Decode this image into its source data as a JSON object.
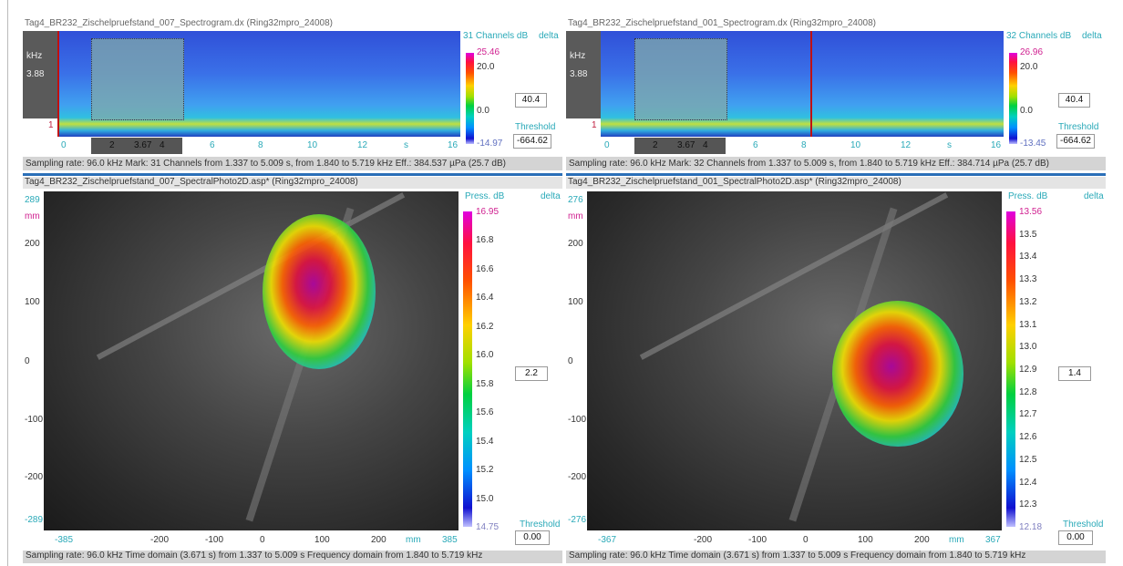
{
  "panels": [
    {
      "spectrogram": {
        "title": "Tag4_BR232_Zischelpruefstand_007_Spectrogram.dx (Ring32mpro_24008)",
        "y_labels": [
          "kHz",
          "3.88",
          "1"
        ],
        "x_labels": [
          "0",
          "2",
          "3.67",
          "4",
          "6",
          "8",
          "10",
          "12",
          "s",
          "16"
        ],
        "scale": {
          "header": "31 Channels dB",
          "delta": "delta",
          "labels": [
            "25.46",
            "20.0",
            "0.0",
            "-14.97"
          ],
          "value": "40.4",
          "threshold_label": "Threshold",
          "threshold": "-664.62"
        }
      },
      "status": "Sampling rate: 96.0 kHz Mark: 31 Channels from 1.337 to 5.009 s, from 1.840 to 5.719 kHz  Eff.: 384.537 µPa (25.7 dB)",
      "photo": {
        "title": "Tag4_BR232_Zischelpruefstand_007_SpectralPhoto2D.asp* (Ring32mpro_24008)",
        "y_labels": [
          "289",
          "mm",
          "200",
          "100",
          "0",
          "-100",
          "-200",
          "-289"
        ],
        "x_labels": [
          "-385",
          "-200",
          "-100",
          "0",
          "100",
          "200",
          "mm",
          "385"
        ],
        "scale": {
          "header": "Press. dB",
          "delta": "delta",
          "labels": [
            "16.95",
            "16.8",
            "16.6",
            "16.4",
            "16.2",
            "16.0",
            "15.8",
            "15.6",
            "15.4",
            "15.2",
            "15.0",
            "14.75"
          ],
          "value": "2.2",
          "threshold_label": "Threshold",
          "threshold": "0.00"
        }
      },
      "footer": "Sampling rate: 96.0 kHz  Time domain (3.671 s) from 1.337 to 5.009 s     Frequency domain from 1.840 to 5.719 kHz"
    },
    {
      "spectrogram": {
        "title": "Tag4_BR232_Zischelpruefstand_001_Spectrogram.dx (Ring32mpro_24008)",
        "y_labels": [
          "kHz",
          "3.88",
          "1"
        ],
        "x_labels": [
          "0",
          "2",
          "3.67",
          "4",
          "6",
          "8",
          "10",
          "12",
          "s",
          "16"
        ],
        "scale": {
          "header": "32 Channels dB",
          "delta": "delta",
          "labels": [
            "26.96",
            "20.0",
            "0.0",
            "-13.45"
          ],
          "value": "40.4",
          "threshold_label": "Threshold",
          "threshold": "-664.62"
        }
      },
      "status": "Sampling rate: 96.0 kHz Mark: 32 Channels from 1.337 to 5.009 s, from 1.840 to 5.719 kHz  Eff.: 384.714 µPa (25.7 dB)",
      "photo": {
        "title": "Tag4_BR232_Zischelpruefstand_001_SpectralPhoto2D.asp* (Ring32mpro_24008)",
        "y_labels": [
          "276",
          "mm",
          "200",
          "100",
          "0",
          "-100",
          "-200",
          "-276"
        ],
        "x_labels": [
          "-367",
          "-200",
          "-100",
          "0",
          "100",
          "200",
          "mm",
          "367"
        ],
        "scale": {
          "header": "Press. dB",
          "delta": "delta",
          "labels": [
            "13.56",
            "13.5",
            "13.4",
            "13.3",
            "13.2",
            "13.1",
            "13.0",
            "12.9",
            "12.8",
            "12.7",
            "12.6",
            "12.5",
            "12.4",
            "12.3",
            "12.18"
          ],
          "value": "1.4",
          "threshold_label": "Threshold",
          "threshold": "0.00"
        }
      },
      "footer": "Sampling rate: 96.0 kHz  Time domain (3.671 s) from 1.337 to 5.009 s     Frequency domain from 1.840 to 5.719 kHz"
    }
  ]
}
